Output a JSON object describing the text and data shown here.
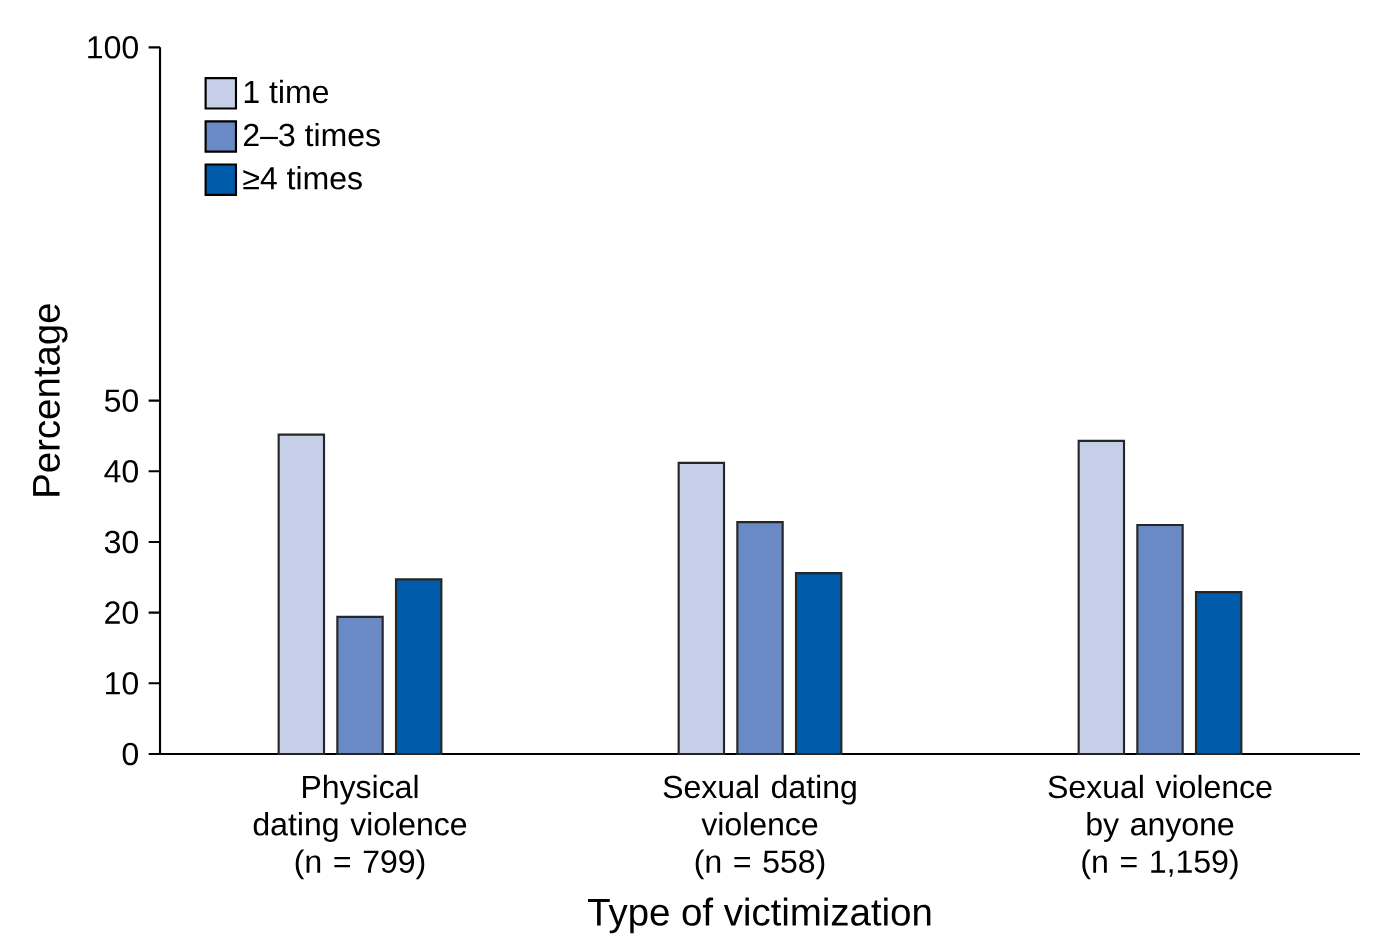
{
  "chart_data": {
    "type": "bar",
    "xlabel": "Type of victimization",
    "ylabel": "Percentage",
    "categories": [
      "Physical dating violence (n = 799)",
      "Sexual dating violence (n = 558)",
      "Sexual violence by anyone (n = 1,159)"
    ],
    "series": [
      {
        "name": "1 time",
        "color": "#c5cfe8",
        "values": [
          45.2,
          41.2,
          44.3
        ]
      },
      {
        "name": "2–3 times",
        "color": "#6a8ac6",
        "values": [
          19.4,
          32.8,
          32.4
        ]
      },
      {
        "name": "≥4 times",
        "color": "#005bab",
        "values": [
          24.7,
          25.6,
          22.9
        ]
      }
    ],
    "ylim": [
      0,
      100
    ],
    "yticks": [
      0,
      10,
      20,
      30,
      40,
      50,
      100
    ],
    "legend": "top left"
  }
}
